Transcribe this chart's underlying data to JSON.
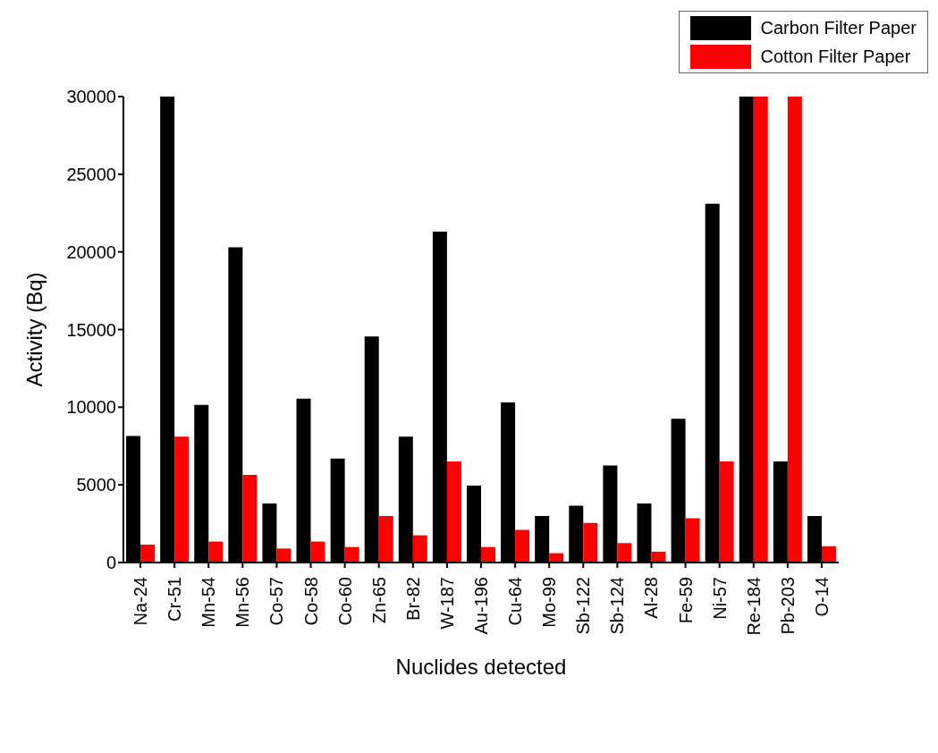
{
  "chart_data": {
    "type": "bar",
    "xlabel": "Nuclides detected",
    "ylabel": "Activity (Bq)",
    "categories": [
      "Na-24",
      "Cr-51",
      "Mn-54",
      "Mn-56",
      "Co-57",
      "Co-58",
      "Co-60",
      "Zn-65",
      "Br-82",
      "W-187",
      "Au-196",
      "Cu-64",
      "Mo-99",
      "Sb-122",
      "Sb-124",
      "Al-28",
      "Fe-59",
      "Ni-57",
      "Re-184",
      "Pb-203",
      "O-14"
    ],
    "series": [
      {
        "name": "Carbon Filter Paper",
        "color": "#000000",
        "values": [
          8150,
          30000,
          10150,
          20300,
          3800,
          10550,
          6700,
          14550,
          8100,
          21300,
          4950,
          10300,
          3000,
          3650,
          6250,
          3800,
          9250,
          23100,
          30000,
          6500,
          3000
        ]
      },
      {
        "name": "Cotton Filter Paper",
        "color": "#ff0000",
        "values": [
          1150,
          8100,
          1350,
          5650,
          900,
          1350,
          1000,
          3000,
          1750,
          6500,
          1000,
          2100,
          600,
          2550,
          1250,
          700,
          2850,
          6500,
          30000,
          30000,
          1050
        ]
      }
    ],
    "ylim": [
      0,
      30000
    ],
    "yticks": [
      0,
      5000,
      10000,
      15000,
      20000,
      25000,
      30000
    ],
    "grid": false,
    "legend": "top right"
  }
}
